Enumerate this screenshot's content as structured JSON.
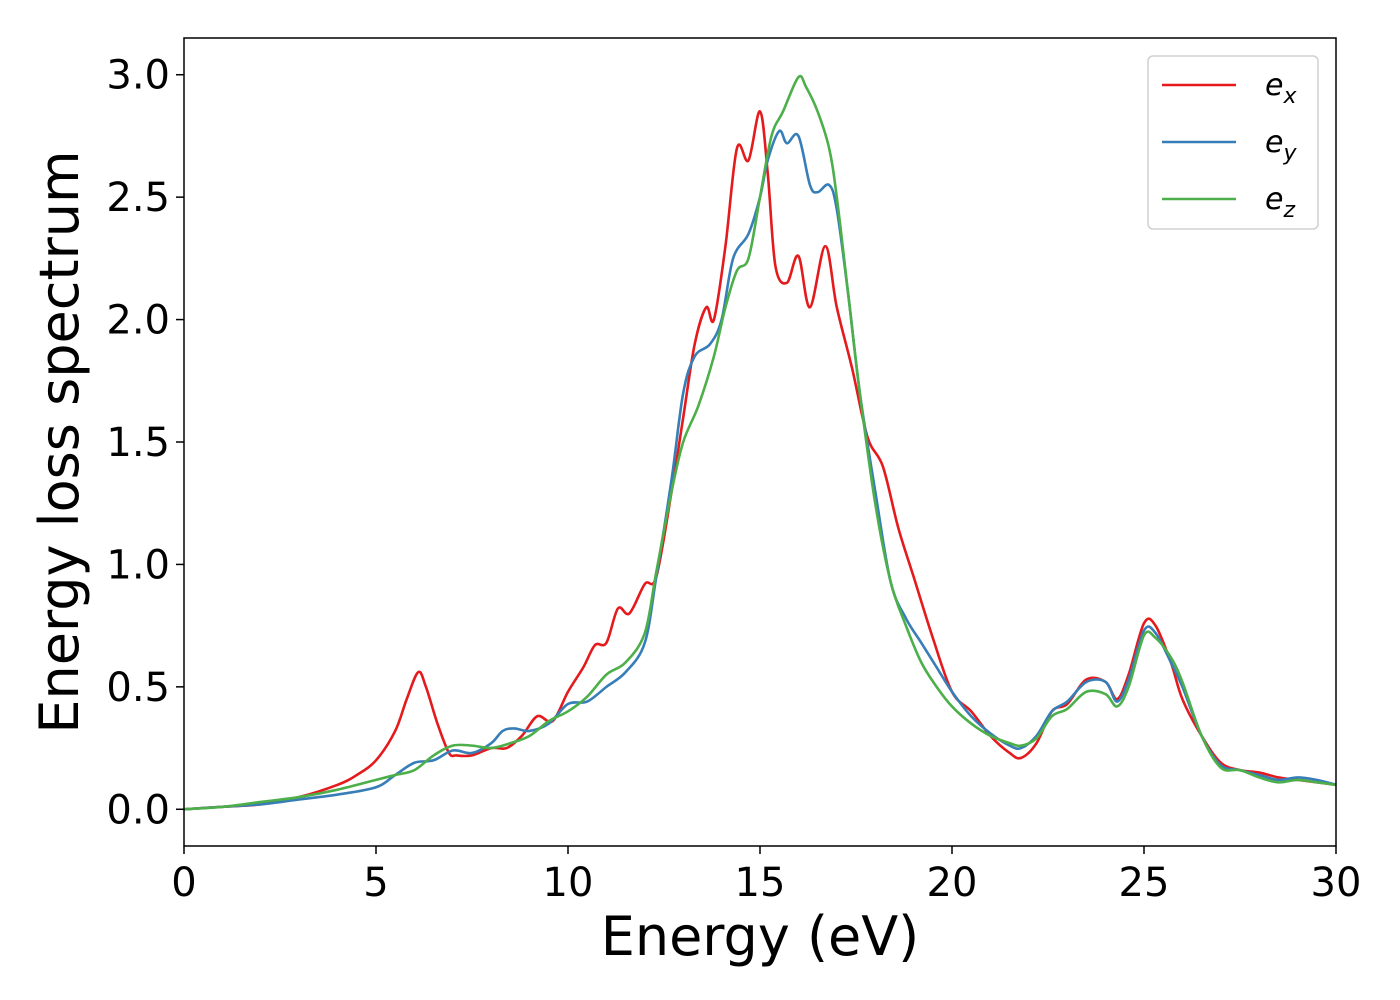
{
  "chart_data": {
    "type": "line",
    "xlabel": "Energy (eV)",
    "ylabel": "Energy loss spectrum",
    "xlim": [
      0,
      30
    ],
    "ylim": [
      -0.15,
      3.15
    ],
    "xticks": [
      0,
      5,
      10,
      15,
      20,
      25,
      30
    ],
    "xtick_labels": [
      "0",
      "5",
      "10",
      "15",
      "20",
      "25",
      "30"
    ],
    "yticks": [
      0.0,
      0.5,
      1.0,
      1.5,
      2.0,
      2.5,
      3.0
    ],
    "ytick_labels": [
      "0.0",
      "0.5",
      "1.0",
      "1.5",
      "2.0",
      "2.5",
      "3.0"
    ],
    "grid": false,
    "legend_position": "top-right",
    "series": [
      {
        "name": "e_x",
        "label_base": "e",
        "label_sub": "x",
        "color": "#e41a1c",
        "x": [
          0,
          1,
          2,
          3,
          4,
          4.5,
          5,
          5.5,
          5.8,
          6.1,
          6.3,
          6.6,
          6.9,
          7.1,
          7.5,
          8,
          8.4,
          8.8,
          9.2,
          9.6,
          10,
          10.4,
          10.7,
          11,
          11.3,
          11.6,
          12,
          12.3,
          12.7,
          13,
          13.3,
          13.6,
          13.8,
          14.1,
          14.4,
          14.7,
          15,
          15.2,
          15.4,
          15.7,
          16,
          16.3,
          16.7,
          17,
          17.4,
          17.8,
          18.2,
          18.6,
          19,
          19.5,
          20,
          20.5,
          21,
          21.5,
          21.8,
          22.2,
          22.6,
          23,
          23.5,
          24,
          24.3,
          24.6,
          25,
          25.3,
          25.7,
          26,
          26.5,
          27,
          27.5,
          28,
          28.5,
          29,
          29.5,
          30
        ],
        "y": [
          0,
          0.01,
          0.02,
          0.05,
          0.1,
          0.14,
          0.2,
          0.32,
          0.45,
          0.56,
          0.5,
          0.35,
          0.23,
          0.22,
          0.22,
          0.25,
          0.25,
          0.3,
          0.38,
          0.36,
          0.48,
          0.58,
          0.67,
          0.68,
          0.82,
          0.8,
          0.92,
          0.95,
          1.3,
          1.6,
          1.9,
          2.05,
          2.0,
          2.3,
          2.7,
          2.65,
          2.85,
          2.6,
          2.22,
          2.15,
          2.26,
          2.05,
          2.3,
          2.05,
          1.8,
          1.52,
          1.4,
          1.15,
          0.95,
          0.7,
          0.48,
          0.4,
          0.3,
          0.23,
          0.21,
          0.27,
          0.4,
          0.43,
          0.53,
          0.52,
          0.45,
          0.55,
          0.76,
          0.75,
          0.6,
          0.45,
          0.3,
          0.19,
          0.16,
          0.15,
          0.13,
          0.12,
          0.11,
          0.1
        ]
      },
      {
        "name": "e_y",
        "label_base": "e",
        "label_sub": "y",
        "color": "#377eb8",
        "x": [
          0,
          1,
          2,
          3,
          4,
          5,
          5.5,
          6,
          6.5,
          7,
          7.5,
          8,
          8.3,
          8.6,
          9,
          9.5,
          10,
          10.5,
          11,
          11.5,
          12,
          12.3,
          12.7,
          13,
          13.3,
          13.7,
          14,
          14.3,
          14.7,
          15,
          15.2,
          15.5,
          15.7,
          16,
          16.3,
          16.5,
          16.8,
          17,
          17.3,
          17.6,
          18,
          18.4,
          18.8,
          19.2,
          19.6,
          20,
          20.5,
          21,
          21.5,
          21.8,
          22.2,
          22.6,
          23,
          23.5,
          24,
          24.3,
          24.6,
          25,
          25.3,
          25.7,
          26,
          26.5,
          27,
          27.5,
          28,
          28.5,
          29,
          29.5,
          30
        ],
        "y": [
          0,
          0.01,
          0.02,
          0.04,
          0.06,
          0.09,
          0.14,
          0.19,
          0.2,
          0.24,
          0.23,
          0.27,
          0.32,
          0.33,
          0.32,
          0.35,
          0.43,
          0.44,
          0.5,
          0.56,
          0.68,
          0.95,
          1.35,
          1.7,
          1.85,
          1.9,
          2.0,
          2.25,
          2.35,
          2.5,
          2.65,
          2.77,
          2.72,
          2.75,
          2.55,
          2.52,
          2.55,
          2.45,
          2.1,
          1.7,
          1.3,
          0.93,
          0.78,
          0.68,
          0.58,
          0.48,
          0.38,
          0.31,
          0.26,
          0.25,
          0.3,
          0.4,
          0.44,
          0.52,
          0.52,
          0.44,
          0.53,
          0.73,
          0.72,
          0.6,
          0.5,
          0.3,
          0.18,
          0.16,
          0.14,
          0.12,
          0.13,
          0.12,
          0.1
        ]
      },
      {
        "name": "e_z",
        "label_base": "e",
        "label_sub": "z",
        "color": "#4daf4a",
        "x": [
          0,
          1,
          2,
          3,
          4,
          5,
          5.5,
          6,
          6.5,
          7,
          7.5,
          8,
          8.5,
          9,
          9.5,
          10,
          10.5,
          11,
          11.5,
          12,
          12.3,
          12.7,
          13,
          13.4,
          13.8,
          14.1,
          14.4,
          14.7,
          15,
          15.3,
          15.6,
          16,
          16.2,
          16.5,
          16.8,
          17,
          17.3,
          17.6,
          18,
          18.4,
          18.8,
          19.2,
          19.6,
          20,
          20.5,
          21,
          21.5,
          21.8,
          22.2,
          22.6,
          23,
          23.5,
          24,
          24.3,
          24.6,
          25,
          25.3,
          25.7,
          26,
          26.5,
          27,
          27.5,
          28,
          28.5,
          29,
          29.5,
          30
        ],
        "y": [
          0,
          0.01,
          0.03,
          0.05,
          0.08,
          0.12,
          0.14,
          0.16,
          0.22,
          0.26,
          0.26,
          0.25,
          0.27,
          0.3,
          0.36,
          0.4,
          0.46,
          0.55,
          0.6,
          0.72,
          0.97,
          1.3,
          1.5,
          1.65,
          1.85,
          2.05,
          2.2,
          2.25,
          2.5,
          2.75,
          2.85,
          2.99,
          2.95,
          2.85,
          2.7,
          2.5,
          2.1,
          1.7,
          1.25,
          0.93,
          0.75,
          0.6,
          0.5,
          0.42,
          0.35,
          0.3,
          0.27,
          0.26,
          0.29,
          0.38,
          0.41,
          0.48,
          0.47,
          0.42,
          0.5,
          0.71,
          0.7,
          0.62,
          0.52,
          0.3,
          0.17,
          0.16,
          0.13,
          0.11,
          0.12,
          0.11,
          0.1
        ]
      }
    ]
  }
}
